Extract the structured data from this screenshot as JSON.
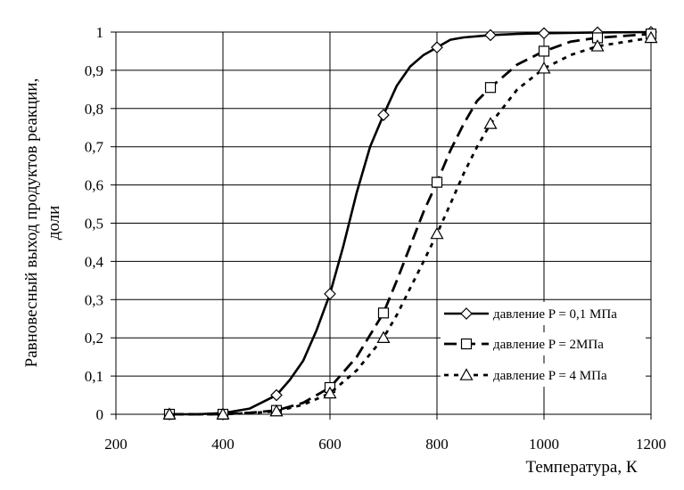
{
  "chart_data": {
    "type": "line",
    "title": "",
    "xlabel": "Температура, К",
    "ylabel_line1": "Равновесный выход продуктов реакции,",
    "ylabel_line2": "доли",
    "xlim": [
      200,
      1200
    ],
    "ylim": [
      0,
      1
    ],
    "xticks": [
      200,
      400,
      600,
      800,
      1000,
      1200
    ],
    "xtick_labels": [
      "200",
      "400",
      "600",
      "800",
      "1000",
      "1200"
    ],
    "yticks": [
      0,
      0.1,
      0.2,
      0.3,
      0.4,
      0.5,
      0.6,
      0.7,
      0.8,
      0.9,
      1
    ],
    "ytick_labels": [
      "0",
      "0,1",
      "0,2",
      "0,3",
      "0,4",
      "0,5",
      "0,6",
      "0,7",
      "0,8",
      "0,9",
      "1"
    ],
    "grid": true,
    "legend_position": "bottom-right",
    "series": [
      {
        "name": "давление P = 0,1 МПа",
        "marker": "diamond",
        "line_style": "solid",
        "points": [
          [
            300,
            0.0
          ],
          [
            400,
            0.0
          ],
          [
            500,
            0.05
          ],
          [
            600,
            0.315
          ],
          [
            700,
            0.783
          ],
          [
            800,
            0.96
          ],
          [
            900,
            0.992
          ],
          [
            1000,
            0.997
          ],
          [
            1100,
            0.999
          ],
          [
            1200,
            1.0
          ]
        ],
        "curve": [
          [
            300,
            0.0
          ],
          [
            350,
            0.0
          ],
          [
            400,
            0.003
          ],
          [
            450,
            0.015
          ],
          [
            500,
            0.05
          ],
          [
            525,
            0.09
          ],
          [
            550,
            0.14
          ],
          [
            575,
            0.22
          ],
          [
            600,
            0.315
          ],
          [
            625,
            0.44
          ],
          [
            650,
            0.58
          ],
          [
            675,
            0.7
          ],
          [
            700,
            0.783
          ],
          [
            725,
            0.86
          ],
          [
            750,
            0.91
          ],
          [
            775,
            0.94
          ],
          [
            800,
            0.96
          ],
          [
            825,
            0.98
          ],
          [
            850,
            0.986
          ],
          [
            900,
            0.992
          ],
          [
            950,
            0.995
          ],
          [
            1000,
            0.997
          ],
          [
            1100,
            0.999
          ],
          [
            1200,
            1.0
          ]
        ]
      },
      {
        "name": "давление P = 2МПа",
        "marker": "square",
        "line_style": "dashed",
        "points": [
          [
            300,
            0.0
          ],
          [
            400,
            0.0
          ],
          [
            500,
            0.01
          ],
          [
            600,
            0.07
          ],
          [
            700,
            0.265
          ],
          [
            800,
            0.607
          ],
          [
            900,
            0.855
          ],
          [
            1000,
            0.95
          ],
          [
            1100,
            0.985
          ],
          [
            1200,
            0.995
          ]
        ],
        "curve": [
          [
            300,
            0.0
          ],
          [
            400,
            0.0
          ],
          [
            450,
            0.004
          ],
          [
            500,
            0.01
          ],
          [
            550,
            0.03
          ],
          [
            600,
            0.07
          ],
          [
            650,
            0.15
          ],
          [
            700,
            0.265
          ],
          [
            725,
            0.35
          ],
          [
            750,
            0.44
          ],
          [
            775,
            0.53
          ],
          [
            800,
            0.607
          ],
          [
            825,
            0.69
          ],
          [
            850,
            0.76
          ],
          [
            875,
            0.82
          ],
          [
            900,
            0.855
          ],
          [
            950,
            0.915
          ],
          [
            1000,
            0.95
          ],
          [
            1050,
            0.975
          ],
          [
            1100,
            0.985
          ],
          [
            1200,
            0.995
          ]
        ]
      },
      {
        "name": "давление P = 4 МПа",
        "marker": "triangle",
        "line_style": "dotted",
        "points": [
          [
            300,
            0.0
          ],
          [
            400,
            0.0
          ],
          [
            500,
            0.008
          ],
          [
            600,
            0.055
          ],
          [
            700,
            0.2
          ],
          [
            800,
            0.472
          ],
          [
            900,
            0.76
          ],
          [
            1000,
            0.905
          ],
          [
            1100,
            0.963
          ],
          [
            1200,
            0.985
          ]
        ],
        "curve": [
          [
            300,
            0.0
          ],
          [
            400,
            0.0
          ],
          [
            450,
            0.003
          ],
          [
            500,
            0.008
          ],
          [
            550,
            0.025
          ],
          [
            600,
            0.055
          ],
          [
            650,
            0.115
          ],
          [
            700,
            0.2
          ],
          [
            725,
            0.26
          ],
          [
            750,
            0.33
          ],
          [
            775,
            0.4
          ],
          [
            800,
            0.472
          ],
          [
            825,
            0.55
          ],
          [
            850,
            0.63
          ],
          [
            875,
            0.7
          ],
          [
            900,
            0.76
          ],
          [
            950,
            0.85
          ],
          [
            1000,
            0.905
          ],
          [
            1050,
            0.94
          ],
          [
            1100,
            0.963
          ],
          [
            1200,
            0.985
          ]
        ]
      }
    ]
  }
}
